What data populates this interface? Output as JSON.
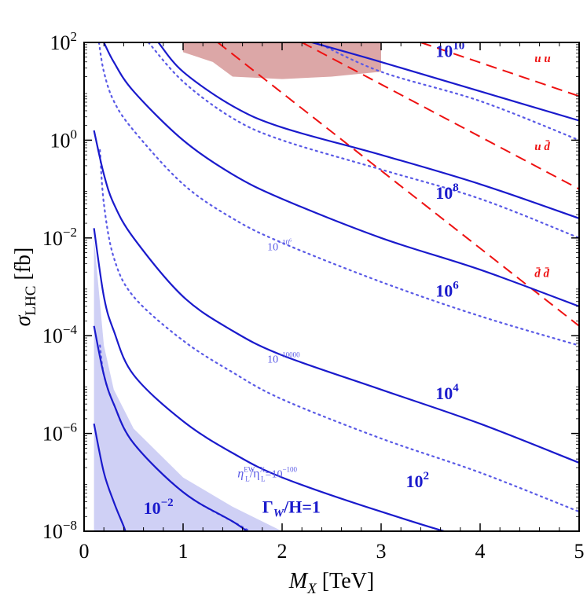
{
  "chart_data": {
    "type": "line",
    "title": "",
    "x_axis": {
      "label_main": "M",
      "label_sub": "X",
      "label_unit": " [TeV]",
      "range": [
        0,
        5
      ],
      "ticks": [
        "0",
        "1",
        "2",
        "3",
        "4",
        "5"
      ]
    },
    "y_axis": {
      "label_main": "σ",
      "label_sub": "LHC",
      "label_unit": " [fb]",
      "scale": "log",
      "range": [
        1e-08,
        100
      ],
      "ticks": [
        {
          "base": "10",
          "exp": "2",
          "value": 100
        },
        {
          "base": "10",
          "exp": "0",
          "value": 1
        },
        {
          "base": "10",
          "exp": "−2",
          "value": 0.01
        },
        {
          "base": "10",
          "exp": "−4",
          "value": 0.0001
        },
        {
          "base": "10",
          "exp": "−6",
          "value": 1e-06
        },
        {
          "base": "10",
          "exp": "−8",
          "value": 1e-08
        }
      ]
    },
    "colors": {
      "solid": "#1a1acc",
      "dotted": "#5a5ae6",
      "dashed": "#ee1111",
      "shade_blue": "#cfd0f5",
      "shade_red": "#dca7a7"
    },
    "solid_series": [
      {
        "label_base": "10",
        "label_exp": "10",
        "points": [
          [
            2.3,
            100
          ],
          [
            3.0,
            39.8
          ],
          [
            4.0,
            10.0
          ],
          [
            5.0,
            2.51
          ]
        ]
      },
      {
        "label_base": "10",
        "label_exp": "8",
        "points": [
          [
            0.75,
            100
          ],
          [
            1.0,
            25.1
          ],
          [
            1.5,
            5.01
          ],
          [
            2.0,
            1.82
          ],
          [
            3.0,
            0.5
          ],
          [
            4.0,
            0.126
          ],
          [
            5.0,
            0.0251
          ]
        ]
      },
      {
        "label_base": "10",
        "label_exp": "6",
        "points": [
          [
            0.2,
            100
          ],
          [
            0.3,
            39.8
          ],
          [
            0.5,
            10.0
          ],
          [
            1.0,
            1.0
          ],
          [
            1.5,
            0.2
          ],
          [
            2.0,
            0.063
          ],
          [
            3.0,
            0.01
          ],
          [
            4.0,
            0.00224
          ],
          [
            5.0,
            0.000398
          ]
        ]
      },
      {
        "label_base": "10",
        "label_exp": "4",
        "points": [
          [
            0.1,
            1.58
          ],
          [
            0.2,
            0.2
          ],
          [
            0.3,
            0.05
          ],
          [
            0.5,
            0.01
          ],
          [
            1.0,
            0.000631
          ],
          [
            1.5,
            0.000126
          ],
          [
            2.0,
            3.98e-05
          ],
          [
            3.0,
            7.9e-06
          ],
          [
            4.0,
            1.58e-06
          ],
          [
            5.0,
            2.51e-07
          ]
        ]
      },
      {
        "label_base": "10",
        "label_exp": "2",
        "points": [
          [
            0.1,
            0.0158
          ],
          [
            0.2,
            0.000631
          ],
          [
            0.3,
            0.000126
          ],
          [
            0.5,
            1.58e-05
          ],
          [
            1.0,
            1.78e-06
          ],
          [
            1.5,
            3.98e-07
          ],
          [
            2.0,
            1.26e-07
          ],
          [
            3.0,
            2.51e-08
          ],
          [
            4.0,
            6.3e-09
          ],
          [
            5.0,
            2.5e-09
          ]
        ]
      },
      {
        "label_base": "10",
        "label_exp": "−2",
        "points": [
          [
            0.1,
            1.58e-06
          ],
          [
            0.2,
            1.58e-07
          ],
          [
            0.3,
            3.98e-08
          ],
          [
            0.4,
            1.26e-08
          ],
          [
            0.5,
            3.98e-09
          ],
          [
            0.62,
            1e-08
          ]
        ]
      },
      {
        "label_base": "Γ",
        "label_sub": "W",
        "label_rest": "/H=1",
        "points": [
          [
            0.1,
            0.000158
          ],
          [
            0.2,
            1.58e-05
          ],
          [
            0.3,
            3.98e-06
          ],
          [
            0.5,
            6.3e-07
          ],
          [
            1.0,
            6.3e-08
          ],
          [
            1.5,
            1.58e-08
          ],
          [
            2.0,
            4e-09
          ],
          [
            2.35,
            1e-08
          ]
        ]
      }
    ],
    "dotted_series": [
      {
        "points": [
          [
            2.35,
            100
          ],
          [
            3.0,
            25.1
          ],
          [
            4.0,
            6.31
          ],
          [
            5.0,
            1.0
          ]
        ]
      },
      {
        "points": [
          [
            0.65,
            100
          ],
          [
            1.0,
            15.8
          ],
          [
            1.5,
            2.82
          ],
          [
            2.0,
            1.0
          ],
          [
            3.0,
            0.251
          ],
          [
            4.0,
            0.0631
          ],
          [
            5.0,
            0.01
          ]
        ]
      },
      {
        "points": [
          [
            0.15,
            100
          ],
          [
            0.2,
            25.1
          ],
          [
            0.3,
            6.31
          ],
          [
            0.5,
            1.58
          ],
          [
            1.0,
            0.126
          ],
          [
            1.5,
            0.0251
          ],
          [
            2.0,
            0.00794
          ],
          [
            3.0,
            0.00126
          ],
          [
            4.0,
            0.000251
          ],
          [
            5.0,
            6.3e-05
          ]
        ]
      },
      {
        "points": [
          [
            0.16,
            0.631
          ],
          [
            0.2,
            0.05
          ],
          [
            0.3,
            0.00398
          ],
          [
            0.5,
            0.000631
          ],
          [
            1.0,
            7.94e-05
          ],
          [
            1.5,
            1.78e-05
          ],
          [
            2.0,
            5.01e-06
          ],
          [
            3.0,
            7.9e-07
          ],
          [
            4.0,
            1.58e-07
          ],
          [
            5.0,
            2.51e-08
          ]
        ]
      },
      {
        "points": [
          [
            0.16,
            6.31e-05
          ],
          [
            0.2,
            1.58e-05
          ],
          [
            0.3,
            3.98e-06
          ],
          [
            0.5,
            6.3e-07
          ],
          [
            1.0,
            6.31e-08
          ],
          [
            1.5,
            1.58e-08
          ],
          [
            2.0,
            5.01e-09
          ],
          [
            3.0,
            1.26e-09
          ],
          [
            4.0,
            5.01e-09
          ],
          [
            5.0,
            1.26e-09
          ]
        ]
      }
    ],
    "dotted_labels": [
      {
        "text_main": "10",
        "text_exp": "−10",
        "text_exp2": "6",
        "x": 1.85,
        "y": 0.0056
      },
      {
        "text_main": "10",
        "text_exp": "−10000",
        "x": 1.85,
        "y": 2.8e-05
      },
      {
        "text_main": "η",
        "text_sup": "EW",
        "text_sub": "L",
        "text_mid": "/η",
        "text_sup2": "X",
        "text_sub2": "L",
        "text_rest": "=10",
        "text_exp": "−100",
        "x": 1.55,
        "y": 1.26e-07
      }
    ],
    "dashed_series": [
      {
        "label": "u u",
        "label_x": 4.55,
        "label_y": 39.8,
        "points": [
          [
            3.4,
            100
          ],
          [
            5.0,
            7.94
          ]
        ]
      },
      {
        "label": "u d̄",
        "label_x": 4.55,
        "label_y": 0.63,
        "points": [
          [
            2.2,
            100
          ],
          [
            5.0,
            0.1
          ]
        ]
      },
      {
        "label": "d̄ d̄",
        "label_x": 4.55,
        "label_y": 0.00158,
        "points": [
          [
            1.35,
            100
          ],
          [
            5.0,
            0.000158
          ]
        ]
      }
    ],
    "red_region": {
      "points": [
        [
          1.0,
          100
        ],
        [
          3.0,
          100
        ],
        [
          3.0,
          25.1
        ],
        [
          2.5,
          20.0
        ],
        [
          2.0,
          17.8
        ],
        [
          1.5,
          20.0
        ],
        [
          1.3,
          39.8
        ],
        [
          1.0,
          63.1
        ],
        [
          1.0,
          100
        ]
      ]
    },
    "blue_region": {
      "points": [
        [
          0.1,
          0.01
        ],
        [
          0.2,
          6.31e-05
        ],
        [
          0.3,
          7.9e-06
        ],
        [
          0.5,
          1.26e-06
        ],
        [
          1.0,
          1.26e-07
        ],
        [
          1.5,
          3.16e-08
        ],
        [
          2.0,
          1e-08
        ],
        [
          2.35,
          1e-08
        ],
        [
          0.1,
          1e-08
        ]
      ]
    },
    "solid_label_positions": [
      {
        "x": 3.55,
        "y": 50.1
      },
      {
        "x": 3.55,
        "y": 0.063
      },
      {
        "x": 3.55,
        "y": 0.00063
      },
      {
        "x": 3.55,
        "y": 5.01e-06
      },
      {
        "x": 3.25,
        "y": 7.94e-08
      },
      {
        "x": 0.6,
        "y": 2.24e-08
      },
      {
        "x": 1.8,
        "y": 2.4e-08
      }
    ]
  }
}
